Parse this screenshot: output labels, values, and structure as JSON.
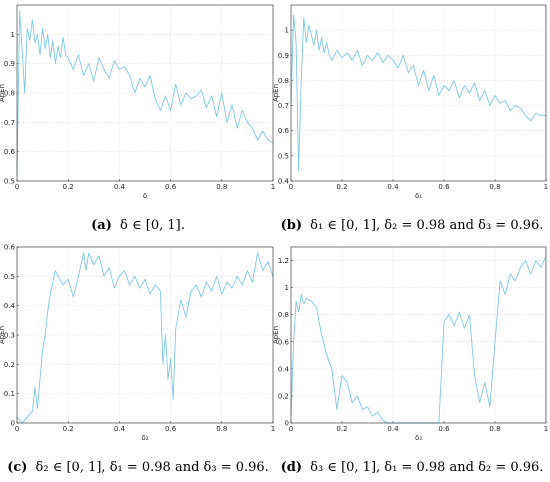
{
  "chart_data": [
    {
      "type": "line",
      "xlabel": "δ",
      "ylabel": "ApEn",
      "xlim": [
        0,
        1
      ],
      "ylim": [
        0.5,
        1.1
      ],
      "xticks": [
        "0",
        "0.2",
        "0.4",
        "0.6",
        "0.8",
        "1"
      ],
      "yticks": [
        "0.5",
        "0.6",
        "0.7",
        "0.8",
        "0.9",
        "1"
      ],
      "ytick_values": [
        0.5,
        0.6,
        0.7,
        0.8,
        0.9,
        1.0
      ],
      "grid": true,
      "color": "#7ec8e3",
      "caption_tag": "(a)",
      "caption_text": "δ ∈ [0, 1].",
      "x": [
        0,
        0.01,
        0.02,
        0.03,
        0.04,
        0.05,
        0.06,
        0.07,
        0.08,
        0.09,
        0.1,
        0.11,
        0.12,
        0.13,
        0.14,
        0.15,
        0.16,
        0.17,
        0.18,
        0.19,
        0.2,
        0.22,
        0.24,
        0.26,
        0.28,
        0.3,
        0.32,
        0.34,
        0.36,
        0.38,
        0.4,
        0.42,
        0.44,
        0.46,
        0.48,
        0.5,
        0.52,
        0.54,
        0.56,
        0.58,
        0.6,
        0.62,
        0.64,
        0.66,
        0.68,
        0.7,
        0.72,
        0.74,
        0.76,
        0.78,
        0.8,
        0.82,
        0.84,
        0.86,
        0.88,
        0.9,
        0.92,
        0.94,
        0.96,
        0.98,
        1.0
      ],
      "y": [
        0.52,
        1.08,
        0.95,
        0.8,
        1.02,
        0.98,
        1.05,
        0.97,
        1.0,
        0.93,
        1.02,
        0.95,
        1.0,
        0.92,
        0.98,
        0.9,
        0.96,
        0.92,
        0.99,
        0.93,
        0.92,
        0.88,
        0.93,
        0.86,
        0.9,
        0.84,
        0.92,
        0.88,
        0.85,
        0.91,
        0.88,
        0.89,
        0.86,
        0.8,
        0.85,
        0.82,
        0.86,
        0.78,
        0.74,
        0.79,
        0.74,
        0.83,
        0.76,
        0.8,
        0.78,
        0.79,
        0.81,
        0.75,
        0.79,
        0.72,
        0.8,
        0.7,
        0.76,
        0.68,
        0.74,
        0.7,
        0.68,
        0.64,
        0.67,
        0.64,
        0.63
      ]
    },
    {
      "type": "line",
      "xlabel": "δ₁",
      "ylabel": "ApEn",
      "xlim": [
        0,
        1
      ],
      "ylim": [
        0.4,
        1.1
      ],
      "xticks": [
        "0",
        "0.2",
        "0.4",
        "0.6",
        "0.8",
        "1"
      ],
      "yticks": [
        "0.4",
        "0.5",
        "0.6",
        "0.7",
        "0.8",
        "0.9",
        "1"
      ],
      "ytick_values": [
        0.4,
        0.5,
        0.6,
        0.7,
        0.8,
        0.9,
        1.0
      ],
      "grid": true,
      "color": "#7ec8e3",
      "caption_tag": "(b)",
      "caption_text": "δ₁ ∈ [0, 1], δ₂ = 0.98 and δ₃ = 0.96.",
      "x": [
        0,
        0.01,
        0.02,
        0.03,
        0.04,
        0.05,
        0.06,
        0.07,
        0.08,
        0.09,
        0.1,
        0.11,
        0.12,
        0.13,
        0.14,
        0.15,
        0.16,
        0.18,
        0.2,
        0.22,
        0.24,
        0.26,
        0.28,
        0.3,
        0.32,
        0.34,
        0.36,
        0.38,
        0.4,
        0.42,
        0.44,
        0.46,
        0.48,
        0.5,
        0.52,
        0.54,
        0.56,
        0.58,
        0.6,
        0.62,
        0.64,
        0.66,
        0.68,
        0.7,
        0.72,
        0.74,
        0.76,
        0.78,
        0.8,
        0.82,
        0.84,
        0.86,
        0.88,
        0.9,
        0.92,
        0.94,
        0.96,
        0.98,
        1.0
      ],
      "y": [
        0.7,
        1.06,
        0.95,
        0.44,
        0.8,
        1.05,
        0.95,
        1.02,
        0.98,
        0.94,
        1.0,
        0.92,
        0.97,
        0.91,
        0.95,
        0.9,
        0.88,
        0.92,
        0.89,
        0.91,
        0.88,
        0.92,
        0.86,
        0.9,
        0.88,
        0.91,
        0.87,
        0.9,
        0.88,
        0.85,
        0.9,
        0.83,
        0.86,
        0.78,
        0.84,
        0.76,
        0.82,
        0.74,
        0.78,
        0.76,
        0.8,
        0.73,
        0.78,
        0.75,
        0.79,
        0.72,
        0.76,
        0.7,
        0.74,
        0.71,
        0.72,
        0.68,
        0.7,
        0.69,
        0.66,
        0.64,
        0.67,
        0.66,
        0.66
      ]
    },
    {
      "type": "line",
      "xlabel": "δ₂",
      "ylabel": "ApEn",
      "xlim": [
        0,
        1
      ],
      "ylim": [
        0,
        0.6
      ],
      "xticks": [
        "0",
        "0.2",
        "0.4",
        "0.6",
        "0.8",
        "1"
      ],
      "yticks": [
        "0",
        "0.1",
        "0.2",
        "0.3",
        "0.4",
        "0.5",
        "0.6"
      ],
      "ytick_values": [
        0,
        0.1,
        0.2,
        0.3,
        0.4,
        0.5,
        0.6
      ],
      "grid": true,
      "color": "#7ec8e3",
      "caption_tag": "(c)",
      "caption_text": "δ₂ ∈ [0, 1], δ₁ = 0.98 and δ₃ = 0.96.",
      "x": [
        0,
        0.02,
        0.04,
        0.06,
        0.07,
        0.08,
        0.09,
        0.1,
        0.11,
        0.12,
        0.13,
        0.14,
        0.15,
        0.16,
        0.18,
        0.2,
        0.22,
        0.24,
        0.26,
        0.27,
        0.28,
        0.3,
        0.32,
        0.34,
        0.36,
        0.38,
        0.4,
        0.42,
        0.44,
        0.46,
        0.48,
        0.5,
        0.52,
        0.54,
        0.56,
        0.57,
        0.58,
        0.59,
        0.6,
        0.61,
        0.62,
        0.64,
        0.66,
        0.68,
        0.7,
        0.72,
        0.74,
        0.76,
        0.78,
        0.8,
        0.82,
        0.84,
        0.86,
        0.88,
        0.9,
        0.92,
        0.94,
        0.96,
        0.98,
        1.0
      ],
      "y": [
        0.02,
        0.0,
        0.02,
        0.04,
        0.12,
        0.05,
        0.15,
        0.25,
        0.3,
        0.38,
        0.44,
        0.48,
        0.52,
        0.5,
        0.47,
        0.49,
        0.43,
        0.5,
        0.58,
        0.52,
        0.58,
        0.54,
        0.57,
        0.5,
        0.53,
        0.46,
        0.5,
        0.52,
        0.47,
        0.5,
        0.46,
        0.49,
        0.44,
        0.47,
        0.45,
        0.2,
        0.3,
        0.15,
        0.22,
        0.08,
        0.32,
        0.42,
        0.36,
        0.45,
        0.47,
        0.43,
        0.48,
        0.45,
        0.5,
        0.44,
        0.48,
        0.46,
        0.5,
        0.47,
        0.52,
        0.48,
        0.58,
        0.52,
        0.55,
        0.5
      ]
    },
    {
      "type": "line",
      "xlabel": "δ₃",
      "ylabel": "ApEn",
      "xlim": [
        0,
        1
      ],
      "ylim": [
        0,
        1.3
      ],
      "xticks": [
        "0",
        "0.2",
        "0.4",
        "0.6",
        "0.8",
        "1"
      ],
      "yticks": [
        "0",
        "0.2",
        "0.4",
        "0.6",
        "0.8",
        "1",
        "1.2"
      ],
      "ytick_values": [
        0,
        0.2,
        0.4,
        0.6,
        0.8,
        1.0,
        1.2
      ],
      "grid": true,
      "color": "#7ec8e3",
      "caption_tag": "(d)",
      "caption_text": "δ₃ ∈ [0, 1], δ₁ = 0.98 and δ₂ = 0.96.",
      "x": [
        0,
        0.01,
        0.02,
        0.03,
        0.04,
        0.05,
        0.06,
        0.08,
        0.1,
        0.12,
        0.14,
        0.16,
        0.18,
        0.2,
        0.22,
        0.24,
        0.26,
        0.28,
        0.3,
        0.32,
        0.34,
        0.36,
        0.38,
        0.4,
        0.45,
        0.5,
        0.55,
        0.58,
        0.6,
        0.62,
        0.64,
        0.66,
        0.68,
        0.7,
        0.72,
        0.74,
        0.76,
        0.78,
        0.8,
        0.82,
        0.84,
        0.86,
        0.88,
        0.9,
        0.92,
        0.94,
        0.96,
        0.98,
        1.0
      ],
      "y": [
        0.05,
        0.6,
        0.9,
        0.82,
        0.95,
        0.88,
        0.92,
        0.9,
        0.85,
        0.65,
        0.5,
        0.4,
        0.1,
        0.35,
        0.3,
        0.15,
        0.2,
        0.1,
        0.12,
        0.05,
        0.08,
        0.02,
        0.0,
        0.0,
        0.0,
        0.0,
        0.0,
        0.0,
        0.75,
        0.8,
        0.72,
        0.82,
        0.7,
        0.8,
        0.35,
        0.15,
        0.3,
        0.12,
        0.6,
        1.05,
        0.95,
        1.1,
        1.05,
        1.15,
        1.2,
        1.1,
        1.2,
        1.15,
        1.23
      ]
    }
  ]
}
